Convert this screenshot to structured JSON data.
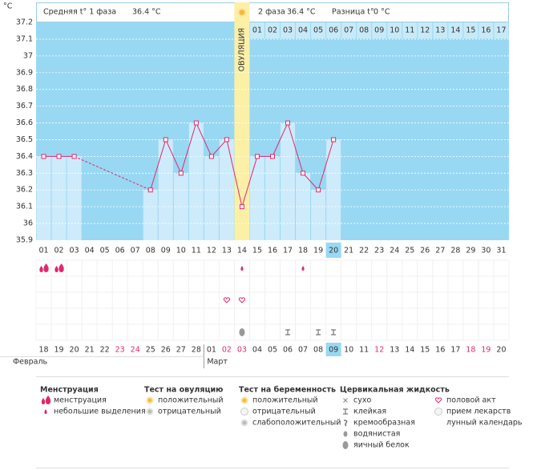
{
  "chart_data": {
    "type": "line",
    "y_label": "°C",
    "header": {
      "phase1_label": "Средняя t° 1 фаза",
      "phase1_value": "36.4 °C",
      "phase2_label": "2 фаза",
      "phase2_value": "36.4 °C",
      "diff_label": "Разница t°",
      "diff_value": "0 °C"
    },
    "ovulation_label": "ОВУЛЯЦИЯ",
    "categories": [
      "01",
      "02",
      "03",
      "04",
      "05",
      "06",
      "07",
      "08",
      "09",
      "10",
      "11",
      "12",
      "13",
      "14",
      "15",
      "16",
      "17",
      "18",
      "19",
      "20",
      "21",
      "22",
      "23",
      "24",
      "25",
      "26",
      "27",
      "28",
      "29",
      "30",
      "31"
    ],
    "values": [
      36.4,
      36.4,
      36.4,
      null,
      null,
      null,
      null,
      36.2,
      36.5,
      36.3,
      36.6,
      36.4,
      36.5,
      36.1,
      36.4,
      36.4,
      36.6,
      36.3,
      36.2,
      36.5,
      null,
      null,
      null,
      null,
      null,
      null,
      null,
      null,
      null,
      null,
      null
    ],
    "color": "#e0286e",
    "phase2_days": [
      "01",
      "02",
      "03",
      "04",
      "05",
      "06",
      "07",
      "08",
      "09",
      "10",
      "11",
      "12",
      "13",
      "14",
      "15",
      "16",
      "17"
    ],
    "calendar_dates": [
      "18",
      "19",
      "20",
      "21",
      "22",
      "23",
      "24",
      "25",
      "26",
      "27",
      "28",
      "01",
      "02",
      "03",
      "04",
      "05",
      "06",
      "07",
      "08",
      "09",
      "10",
      "11",
      "12",
      "13",
      "14",
      "15",
      "16",
      "17",
      "18",
      "19",
      "20"
    ],
    "months": [
      "Февраль",
      "Март"
    ],
    "ylim": [
      35.9,
      37.2
    ],
    "yticks": [
      35.9,
      36,
      36.1,
      36.2,
      36.3,
      36.4,
      36.5,
      36.6,
      36.7,
      36.8,
      36.9,
      37,
      37.1,
      37.2
    ],
    "grid": true
  },
  "legend": [
    {
      "title": "Менструация",
      "items": [
        "менструация",
        "небольшие выделения"
      ]
    },
    {
      "title": "Тест на овуляцию",
      "items": [
        "положительный",
        "отрицательный"
      ]
    },
    {
      "title": "Тест на беременность",
      "items": [
        "положительный",
        "отрицательный",
        "слабоположительный"
      ]
    },
    {
      "title": "Цервикальная жидкость",
      "items": [
        "сухо",
        "клейкая",
        "кремообразная",
        "водянистая",
        "яичный белок"
      ]
    },
    {
      "items": [
        "половой акт",
        "прием лекарств",
        "лунный календарь"
      ]
    }
  ]
}
